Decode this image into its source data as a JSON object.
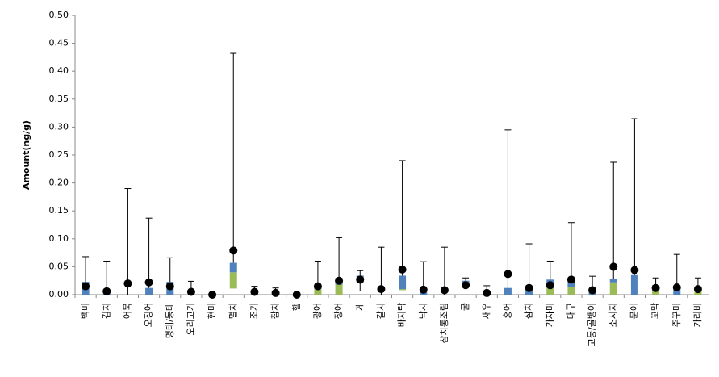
{
  "chart_data": {
    "type": "box",
    "y_label": "Amount(ng/g)",
    "categories": [
      "백미",
      "김치",
      "어묵",
      "오징어",
      "명태/동태",
      "오리고기",
      "현미",
      "멸치",
      "조기",
      "참치",
      "햄",
      "광어",
      "장어",
      "게",
      "갈치",
      "바지락",
      "낙지",
      "참치통조림",
      "굴",
      "새우",
      "홍어",
      "삼치",
      "가자미",
      "대구",
      "고둥/골뱅이",
      "소시지",
      "문어",
      "꼬막",
      "주꾸미",
      "가리비"
    ],
    "min": [
      0,
      0,
      0,
      0,
      0,
      0,
      0,
      0.011,
      0,
      0,
      0,
      0,
      0,
      0.007,
      0,
      0.008,
      0,
      0,
      0.012,
      0,
      0,
      0,
      0,
      0,
      0,
      0,
      0,
      0,
      0,
      0
    ],
    "q1": [
      0,
      0,
      0,
      0,
      0,
      0,
      0,
      0.011,
      0,
      0,
      0,
      0,
      0,
      0.022,
      0,
      0.008,
      0,
      0,
      0.014,
      0,
      0,
      0,
      0,
      0,
      0,
      0,
      0,
      0,
      0,
      0
    ],
    "median": [
      0,
      0,
      0,
      0,
      0,
      0,
      0,
      0.04,
      0,
      0,
      0,
      0.01,
      0.018,
      0.025,
      0,
      0.01,
      0,
      0,
      0.018,
      0,
      0,
      0,
      0.012,
      0.014,
      0,
      0.022,
      0,
      0.008,
      0,
      0.006
    ],
    "q3": [
      0.023,
      0.002,
      0,
      0.012,
      0.023,
      0,
      0,
      0.057,
      0.008,
      0.003,
      0,
      0.018,
      0.03,
      0.034,
      0,
      0.034,
      0.008,
      0,
      0.025,
      0,
      0.012,
      0.008,
      0.027,
      0.03,
      0.01,
      0.028,
      0.035,
      0.017,
      0.015,
      0.013
    ],
    "max": [
      0.068,
      0.06,
      0.19,
      0.137,
      0.066,
      0.024,
      0,
      0.432,
      0.015,
      0.012,
      0,
      0.06,
      0.102,
      0.043,
      0.085,
      0.24,
      0.059,
      0.085,
      0.03,
      0.016,
      0.295,
      0.091,
      0.06,
      0.129,
      0.033,
      0.237,
      0.315,
      0.03,
      0.072,
      0.03
    ],
    "mean": [
      0.015,
      0.006,
      0.02,
      0.022,
      0.015,
      0.005,
      0,
      0.079,
      0.005,
      0.003,
      0,
      0.015,
      0.025,
      0.027,
      0.01,
      0.045,
      0.009,
      0.008,
      0.017,
      0.003,
      0.037,
      0.012,
      0.017,
      0.027,
      0.008,
      0.05,
      0.044,
      0.012,
      0.013,
      0.01
    ],
    "box_color_lower": "#9bbb59",
    "box_color_upper": "#4f81bd",
    "mean_color": "#000000",
    "ylim": [
      0,
      0.5
    ],
    "yticks": [
      {
        "value": 0,
        "label": "0.00"
      },
      {
        "value": 0.05,
        "label": "0.05"
      },
      {
        "value": 0.1,
        "label": "0.10"
      },
      {
        "value": 0.15,
        "label": "0.15"
      },
      {
        "value": 0.2,
        "label": "0.20"
      },
      {
        "value": 0.25,
        "label": "0.25"
      },
      {
        "value": 0.3,
        "label": "0.30"
      },
      {
        "value": 0.35,
        "label": "0.35"
      },
      {
        "value": 0.4,
        "label": "0.40"
      },
      {
        "value": 0.45,
        "label": "0.45"
      },
      {
        "value": 0.5,
        "label": "0.50"
      }
    ],
    "grid": false
  }
}
